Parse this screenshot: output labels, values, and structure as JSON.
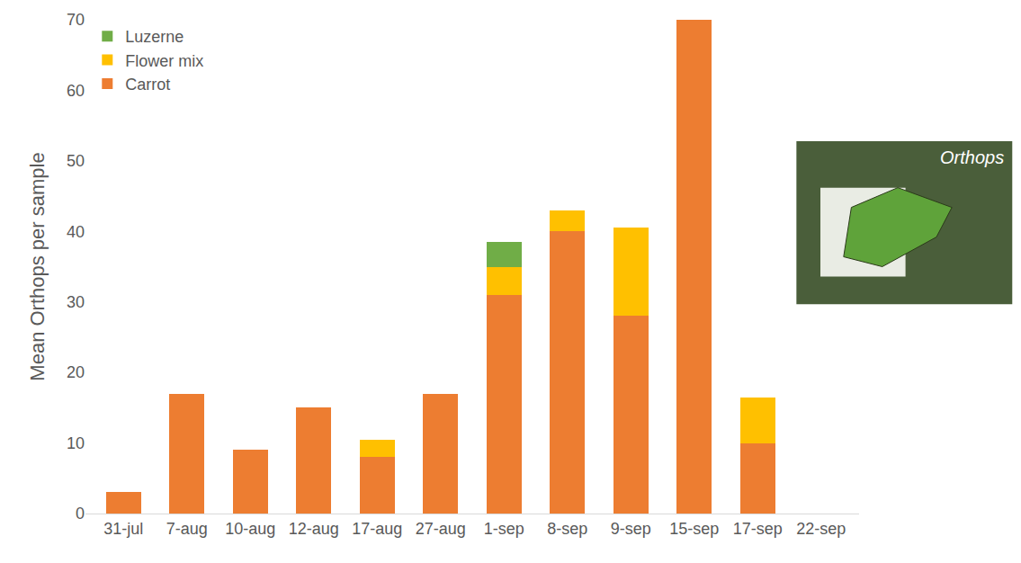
{
  "chart_data": {
    "type": "bar",
    "stacked": true,
    "grid": false,
    "legend": "upper left",
    "y_label": "Mean Orthops per sample",
    "annotations": [
      {
        "text": "Orthops"
      }
    ],
    "categories": [
      "31-jul",
      "7-aug",
      "10-aug",
      "12-aug",
      "17-aug",
      "27-aug",
      "1-sep",
      "8-sep",
      "9-sep",
      "15-sep",
      "17-sep",
      "22-sep"
    ],
    "series": [
      {
        "name": "Carrot",
        "color": "#ED7D31",
        "values": [
          3,
          17,
          9,
          15,
          8,
          17,
          31,
          40,
          28,
          70,
          10,
          0
        ]
      },
      {
        "name": "Flower mix",
        "color": "#FFC000",
        "values": [
          0,
          0,
          0,
          0,
          2.5,
          0,
          4,
          3,
          12.5,
          0,
          6.5,
          0
        ]
      },
      {
        "name": "Luzerne",
        "color": "#70AD47",
        "values": [
          0,
          0,
          0,
          0,
          0,
          0,
          3.5,
          0,
          0,
          0,
          0,
          0
        ]
      }
    ],
    "ylim": [
      0,
      70
    ],
    "yticks": [
      0,
      10,
      20,
      30,
      40,
      50,
      60,
      70
    ]
  }
}
